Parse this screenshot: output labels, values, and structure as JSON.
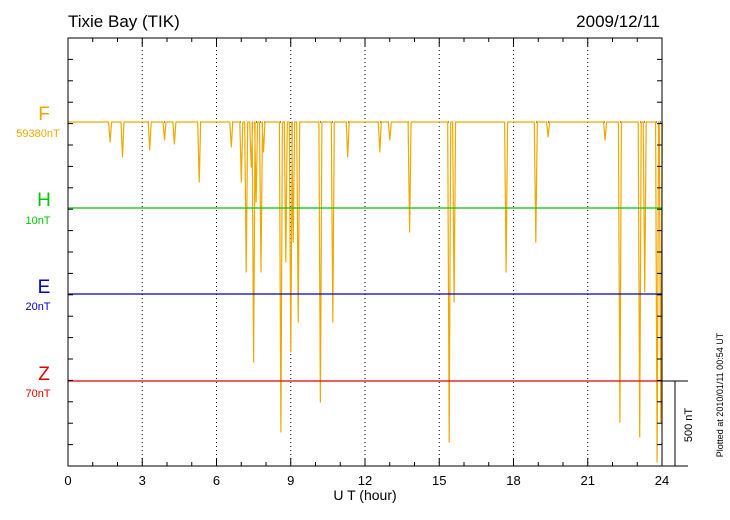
{
  "chart_data": {
    "type": "line",
    "title": "Tixie Bay (TIK)",
    "date": "2009/12/11",
    "xlabel": "U T (hour)",
    "xlim": [
      0,
      24
    ],
    "xticks": [
      0,
      3,
      6,
      9,
      12,
      15,
      18,
      21,
      24
    ],
    "grid": true,
    "scale_bar_label": "500 nT",
    "footer": "Plotted at 2010/01/11 00:54 UT",
    "channels": [
      {
        "name": "F",
        "scale_label": "59380nT",
        "color": "#f0a800",
        "baseline": 0,
        "dips": [
          {
            "t": 1.7,
            "d": 20
          },
          {
            "t": 2.2,
            "d": 35
          },
          {
            "t": 3.3,
            "d": 28
          },
          {
            "t": 3.9,
            "d": 18
          },
          {
            "t": 4.3,
            "d": 22
          },
          {
            "t": 5.3,
            "d": 60
          },
          {
            "t": 6.6,
            "d": 25
          },
          {
            "t": 7.0,
            "d": 60
          },
          {
            "t": 7.2,
            "d": 150
          },
          {
            "t": 7.4,
            "d": 45
          },
          {
            "t": 7.5,
            "d": 240
          },
          {
            "t": 7.6,
            "d": 80
          },
          {
            "t": 7.8,
            "d": 150
          },
          {
            "t": 7.9,
            "d": 30
          },
          {
            "t": 8.6,
            "d": 310
          },
          {
            "t": 8.8,
            "d": 140
          },
          {
            "t": 9.0,
            "d": 230
          },
          {
            "t": 9.1,
            "d": 120
          },
          {
            "t": 9.3,
            "d": 200
          },
          {
            "t": 10.2,
            "d": 280
          },
          {
            "t": 10.7,
            "d": 200
          },
          {
            "t": 11.3,
            "d": 35
          },
          {
            "t": 12.6,
            "d": 30
          },
          {
            "t": 13.0,
            "d": 18
          },
          {
            "t": 13.8,
            "d": 110
          },
          {
            "t": 15.4,
            "d": 320
          },
          {
            "t": 15.6,
            "d": 180
          },
          {
            "t": 17.7,
            "d": 150
          },
          {
            "t": 18.9,
            "d": 120
          },
          {
            "t": 19.4,
            "d": 15
          },
          {
            "t": 21.7,
            "d": 18
          },
          {
            "t": 22.3,
            "d": 300
          },
          {
            "t": 23.1,
            "d": 315
          },
          {
            "t": 23.3,
            "d": 170
          },
          {
            "t": 23.8,
            "d": 340
          },
          {
            "t": 23.95,
            "d": 300
          }
        ]
      },
      {
        "name": "H",
        "scale_label": "10nT",
        "color": "#00c800",
        "baseline": 0,
        "dips": []
      },
      {
        "name": "E",
        "scale_label": "20nT",
        "color": "#0000c8",
        "baseline": 0,
        "dips": []
      },
      {
        "name": "Z",
        "scale_label": "70nT",
        "color": "#e00000",
        "baseline": 0,
        "dips": []
      }
    ]
  }
}
